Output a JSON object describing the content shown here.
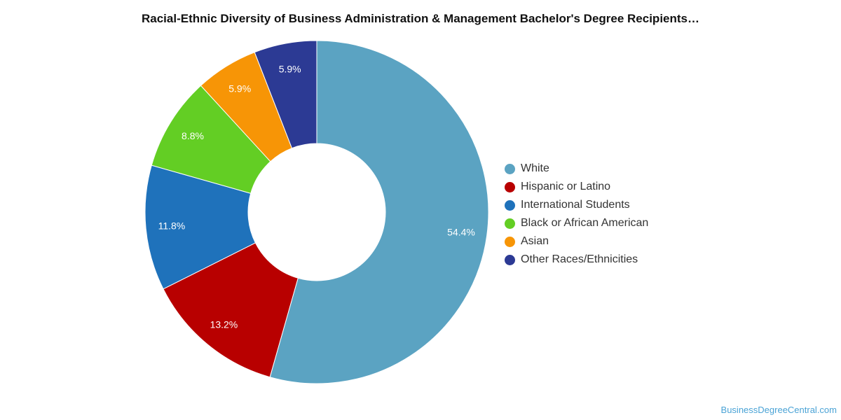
{
  "chart_data": {
    "type": "pie",
    "title": "Racial-Ethnic Diversity of Business Administration & Management Bachelor's Degree Recipients…",
    "legend_position": "right",
    "donut": true,
    "series": [
      {
        "name": "White",
        "value": 54.4,
        "label": "54.4%",
        "color": "#5ba3c2"
      },
      {
        "name": "Hispanic or Latino",
        "value": 13.2,
        "label": "13.2%",
        "color": "#b80000"
      },
      {
        "name": "International Students",
        "value": 11.8,
        "label": "11.8%",
        "color": "#1f72bb"
      },
      {
        "name": "Black or African American",
        "value": 8.8,
        "label": "8.8%",
        "color": "#63ce24"
      },
      {
        "name": "Asian",
        "value": 5.9,
        "label": "5.9%",
        "color": "#f79506"
      },
      {
        "name": "Other Races/Ethnicities",
        "value": 5.9,
        "label": "5.9%",
        "color": "#2c3a94"
      }
    ]
  },
  "watermark": "BusinessDegreeCentral.com"
}
